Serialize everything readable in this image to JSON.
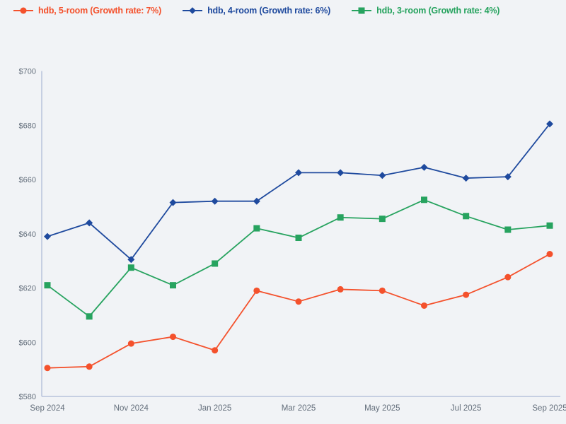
{
  "colors": {
    "background": "#f1f3f6",
    "axis_line": "#b7c3dc",
    "tick_text": "#636e7b"
  },
  "chart_data": {
    "type": "line",
    "title": "",
    "xlabel": "",
    "ylabel": "",
    "grid": false,
    "legend_position": "top-left",
    "x": [
      "Sep 2024",
      "Oct 2024",
      "Nov 2024",
      "Dec 2024",
      "Jan 2025",
      "Feb 2025",
      "Mar 2025",
      "Apr 2025",
      "May 2025",
      "Jun 2025",
      "Jul 2025",
      "Aug 2025",
      "Sep 2025"
    ],
    "xtick_indices": [
      0,
      2,
      4,
      6,
      8,
      10,
      12
    ],
    "xtick_labels": [
      "Sep 2024",
      "Nov 2024",
      "Jan 2025",
      "Mar 2025",
      "May 2025",
      "Jul 2025",
      "Sep 2025"
    ],
    "ylim": [
      580,
      700
    ],
    "ytick_values": [
      580,
      600,
      620,
      640,
      660,
      680,
      700
    ],
    "ytick_labels": [
      "$580",
      "$600",
      "$620",
      "$640",
      "$660",
      "$680",
      "$700"
    ],
    "series": [
      {
        "name": "hdb, 5-room",
        "label": "hdb, 5-room (Growth rate: 7%)",
        "growth_rate": "7%",
        "color": "#f4512c",
        "marker": "circle",
        "values": [
          590.5,
          591,
          599.5,
          602,
          597,
          619,
          615,
          619.5,
          619,
          613.5,
          617.5,
          624,
          632.5
        ]
      },
      {
        "name": "hdb, 4-room",
        "label": "hdb, 4-room (Growth rate: 6%)",
        "growth_rate": "6%",
        "color": "#1f4a9e",
        "marker": "diamond",
        "values": [
          639,
          644,
          630.5,
          651.5,
          652,
          652,
          662.5,
          662.5,
          661.5,
          664.5,
          660.5,
          661,
          680.5
        ]
      },
      {
        "name": "hdb, 3-room",
        "label": "hdb, 3-room (Growth rate: 4%)",
        "growth_rate": "4%",
        "color": "#27a35f",
        "marker": "square",
        "values": [
          621,
          609.5,
          627.5,
          621,
          629,
          642,
          638.5,
          646,
          645.5,
          652.5,
          646.5,
          641.5,
          643
        ]
      }
    ]
  }
}
